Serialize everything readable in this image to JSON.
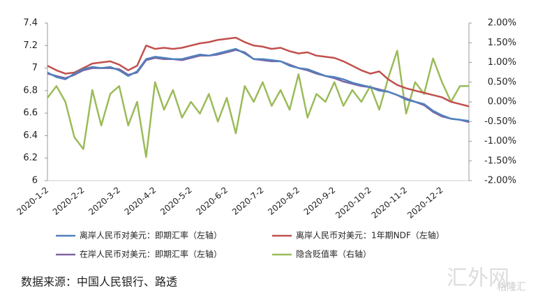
{
  "chart_data": {
    "type": "line",
    "categories": [
      "2020-1-2",
      null,
      null,
      null,
      "2020-2-2",
      null,
      null,
      null,
      "2020-3-2",
      null,
      null,
      null,
      "2020-4-2",
      null,
      null,
      null,
      "2020-5-2",
      null,
      null,
      null,
      "2020-6-2",
      null,
      null,
      null,
      "2020-7-2",
      null,
      null,
      null,
      "2020-8-2",
      null,
      null,
      null,
      "2020-9-2",
      null,
      null,
      null,
      "2020-10-2",
      null,
      null,
      null,
      "2020-11-2",
      null,
      null,
      null,
      "2020-12-2",
      null,
      null,
      null
    ],
    "series": [
      {
        "name": "离岸人民币对美元：即期汇率（左轴）",
        "color": "#4f81bd",
        "axis": "y",
        "values": [
          6.96,
          6.92,
          6.9,
          6.95,
          6.99,
          7.01,
          7.0,
          7.01,
          6.98,
          6.93,
          6.97,
          7.08,
          7.1,
          7.09,
          7.08,
          7.08,
          7.1,
          7.12,
          7.11,
          7.13,
          7.15,
          7.17,
          7.13,
          7.08,
          7.08,
          7.07,
          7.06,
          7.02,
          7.0,
          6.99,
          6.96,
          6.93,
          6.92,
          6.9,
          6.87,
          6.85,
          6.83,
          6.8,
          6.79,
          6.76,
          6.72,
          6.7,
          6.68,
          6.62,
          6.58,
          6.55,
          6.54,
          6.53
        ]
      },
      {
        "name": "离岸人民币对美元：1年期NDF（左轴）",
        "color": "#c0504d",
        "axis": "y",
        "values": [
          7.02,
          6.98,
          6.95,
          6.96,
          7.0,
          7.04,
          7.05,
          7.06,
          7.03,
          6.98,
          7.02,
          7.2,
          7.17,
          7.18,
          7.17,
          7.18,
          7.2,
          7.22,
          7.23,
          7.25,
          7.26,
          7.27,
          7.23,
          7.2,
          7.19,
          7.17,
          7.18,
          7.15,
          7.13,
          7.14,
          7.11,
          7.1,
          7.09,
          7.06,
          7.02,
          6.98,
          6.95,
          6.97,
          6.9,
          6.85,
          6.82,
          6.8,
          6.78,
          6.76,
          6.74,
          6.7,
          6.68,
          6.66
        ]
      },
      {
        "name": "在岸人民币对美元：即期汇率（左轴）",
        "color": "#8064a2",
        "axis": "y",
        "values": [
          6.95,
          6.93,
          6.91,
          6.94,
          6.98,
          7.0,
          7.0,
          7.0,
          6.99,
          6.94,
          6.96,
          7.07,
          7.09,
          7.08,
          7.08,
          7.07,
          7.09,
          7.11,
          7.11,
          7.12,
          7.14,
          7.16,
          7.14,
          7.08,
          7.07,
          7.06,
          7.06,
          7.03,
          7.0,
          6.98,
          6.95,
          6.93,
          6.91,
          6.88,
          6.86,
          6.84,
          6.83,
          6.81,
          6.79,
          6.76,
          6.73,
          6.7,
          6.67,
          6.61,
          6.57,
          6.55,
          6.54,
          6.52
        ]
      },
      {
        "name": "隐含贬值率（右轴）",
        "color": "#9bbb59",
        "axis": "y2",
        "values": [
          0.1,
          0.4,
          0.0,
          -0.9,
          -1.2,
          0.3,
          -0.6,
          0.2,
          0.4,
          -0.6,
          0.0,
          -1.4,
          0.5,
          -0.2,
          0.3,
          -0.4,
          0.0,
          -0.3,
          0.2,
          -0.5,
          0.1,
          -0.8,
          0.4,
          0.0,
          0.5,
          -0.1,
          0.3,
          -0.2,
          0.7,
          -0.4,
          0.2,
          0.0,
          0.5,
          -0.1,
          0.3,
          0.0,
          0.4,
          -0.2,
          0.6,
          1.3,
          -0.3,
          0.5,
          0.2,
          1.1,
          0.5,
          0.0,
          0.4,
          0.4
        ]
      }
    ],
    "ylim": [
      6,
      7.4
    ],
    "yticks": [
      6,
      6.2,
      6.4,
      6.6,
      6.8,
      7,
      7.2,
      7.4
    ],
    "y2lim": [
      -2,
      2
    ],
    "y2ticks": [
      {
        "value": 2,
        "label": "2.00%"
      },
      {
        "value": 1.5,
        "label": "1.50%"
      },
      {
        "value": 1,
        "label": "1.00%"
      },
      {
        "value": 0.5,
        "label": "0.50%"
      },
      {
        "value": 0,
        "label": "0.00%"
      },
      {
        "value": -0.5,
        "label": "-0.50%"
      },
      {
        "value": -1,
        "label": "-1.00%"
      },
      {
        "value": -1.5,
        "label": "-1.50%"
      },
      {
        "value": -2,
        "label": "-2.00%"
      }
    ],
    "grid": false
  },
  "source": "数据来源：中国人民银行、路透",
  "watermark": [
    "汇外网",
    "格隆汇"
  ]
}
